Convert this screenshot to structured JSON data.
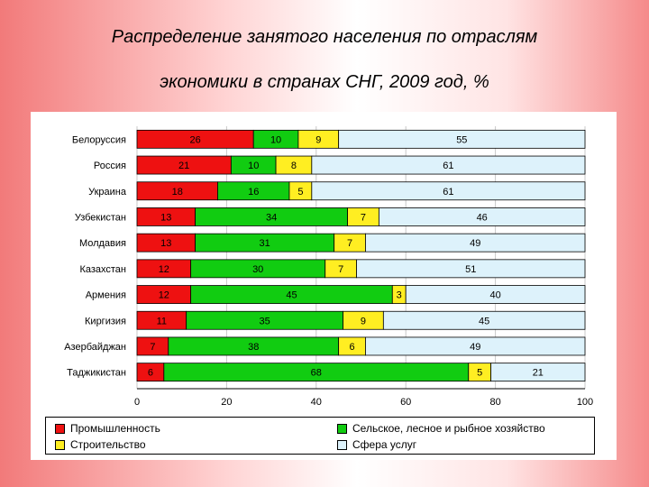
{
  "title_line1": "Распределение занятого населения по отраслям",
  "title_line2": "экономики в странах СНГ, 2009 год, %",
  "chart_data": {
    "type": "bar",
    "orientation": "horizontal",
    "stacked": true,
    "categories": [
      "Белоруссия",
      "Россия",
      "Украина",
      "Узбекистан",
      "Молдавия",
      "Казахстан",
      "Армения",
      "Киргизия",
      "Азербайджан",
      "Таджикистан"
    ],
    "series": [
      {
        "name": "Промышленность",
        "color": "#ee1111",
        "values": [
          26,
          21,
          18,
          13,
          13,
          12,
          12,
          11,
          7,
          6
        ]
      },
      {
        "name": "Сельское, лесное и рыбное хозяйство",
        "color": "#11cc11",
        "values": [
          10,
          10,
          16,
          34,
          31,
          30,
          45,
          35,
          38,
          68
        ]
      },
      {
        "name": "Строительство",
        "color": "#ffee22",
        "values": [
          9,
          8,
          5,
          7,
          7,
          7,
          3,
          9,
          6,
          5
        ]
      },
      {
        "name": "Сфера услуг",
        "color": "#ddf2fb",
        "values": [
          55,
          61,
          61,
          46,
          49,
          51,
          40,
          45,
          49,
          21
        ]
      }
    ],
    "x_ticks": [
      "0",
      "20",
      "40",
      "60",
      "80",
      "100"
    ],
    "xlim": [
      0,
      100
    ],
    "grid": true,
    "legend_position": "bottom"
  }
}
